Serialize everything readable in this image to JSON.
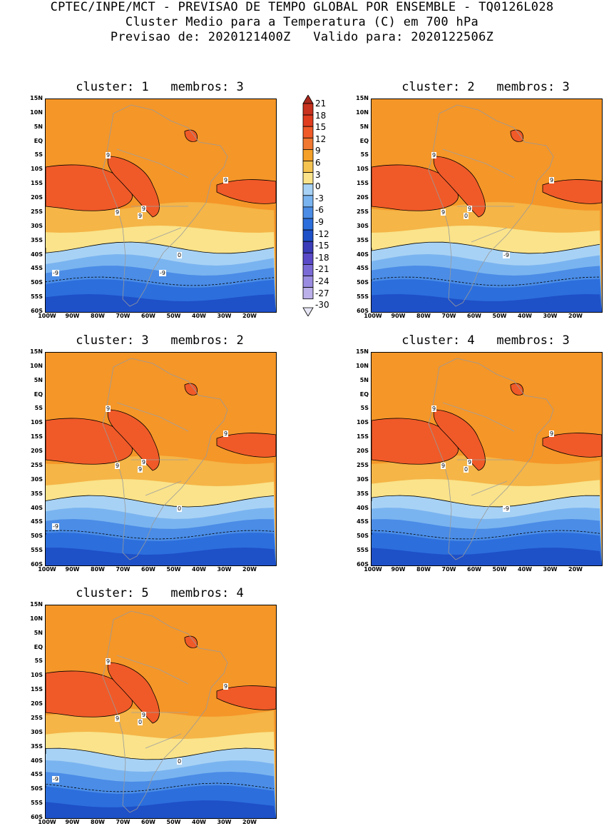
{
  "header": {
    "line1": "CPTEC/INPE/MCT - PREVISAO DE TEMPO GLOBAL POR ENSEMBLE - TQ0126L028",
    "line2": "Cluster Medio para a Temperatura (C) em 700 hPa",
    "line3": "Previsao de: 2020121400Z   Valido para: 2020122506Z"
  },
  "axes": {
    "lat_ticks": [
      "15N",
      "10N",
      "5N",
      "EQ",
      "5S",
      "10S",
      "15S",
      "20S",
      "25S",
      "30S",
      "35S",
      "40S",
      "45S",
      "50S",
      "55S",
      "60S"
    ],
    "lon_ticks": [
      "100W",
      "90W",
      "80W",
      "70W",
      "60W",
      "50W",
      "40W",
      "30W",
      "20W"
    ]
  },
  "colorbar": {
    "labels": [
      "21",
      "18",
      "15",
      "12",
      "9",
      "6",
      "3",
      "0",
      "-3",
      "-6",
      "-9",
      "-12",
      "-15",
      "-18",
      "-21",
      "-24",
      "-27",
      "-30"
    ],
    "colors": [
      "#a8281c",
      "#c8321e",
      "#e03c1e",
      "#f05a28",
      "#f07830",
      "#f5a028",
      "#f5c34f",
      "#fae38a",
      "#a8d2f5",
      "#7ab4f0",
      "#4a8ce6",
      "#2c6edc",
      "#1e50c8",
      "#3a3cb8",
      "#5a4ac8",
      "#7a6ad6",
      "#9a8ce0",
      "#bcb0ea",
      "#e6e6f5"
    ]
  },
  "panels": [
    {
      "title": "cluster: 1   membros: 3",
      "contours": [
        "9",
        "9",
        "9",
        "9",
        "9",
        "0",
        "-9",
        "-9"
      ]
    },
    {
      "title": "cluster: 2   membros: 3",
      "contours": [
        "9",
        "9",
        "9",
        "9",
        "0",
        "-9"
      ]
    },
    {
      "title": "cluster: 3   membros: 2",
      "contours": [
        "9",
        "9",
        "9",
        "9",
        "9",
        "0",
        "-9"
      ]
    },
    {
      "title": "cluster: 4   membros: 3",
      "contours": [
        "9",
        "9",
        "9",
        "9",
        "0",
        "-9"
      ]
    },
    {
      "title": "cluster: 5   membros: 4",
      "contours": [
        "9",
        "9",
        "9",
        "9",
        "0",
        "0",
        "-9"
      ]
    }
  ]
}
